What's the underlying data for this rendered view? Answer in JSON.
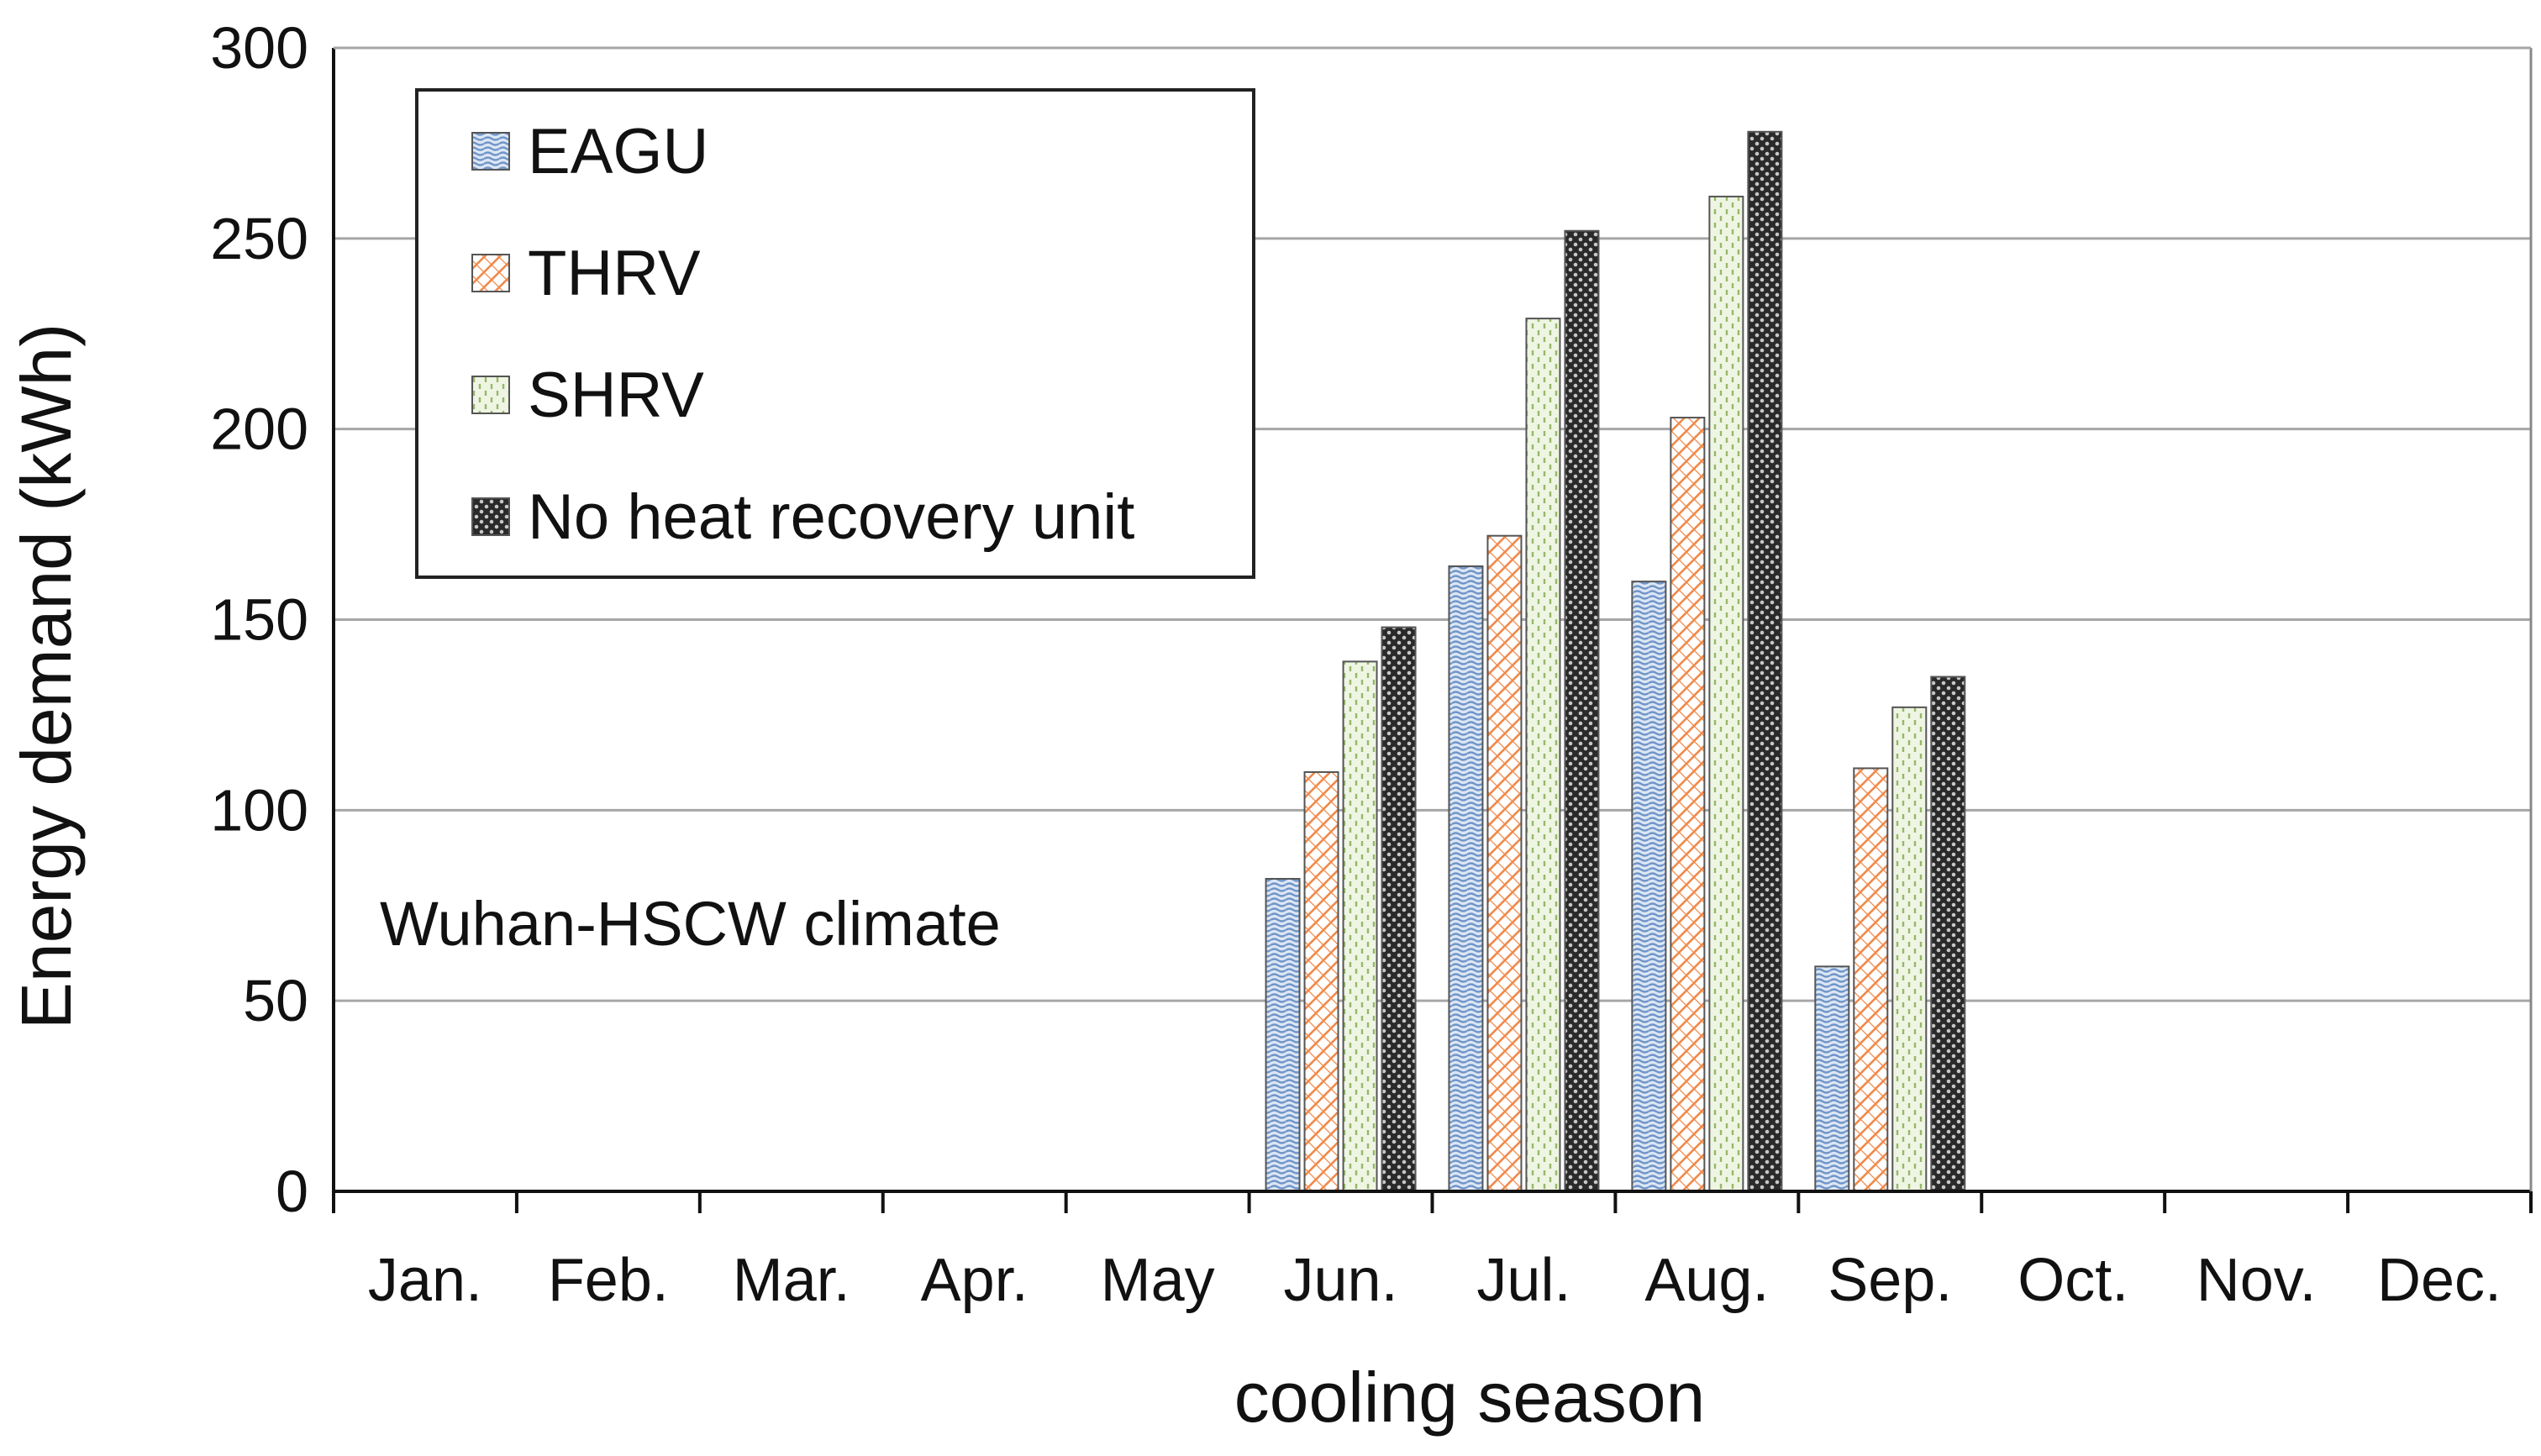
{
  "chart_data": {
    "type": "bar",
    "title": "",
    "annotation": "Wuhan-HSCW climate",
    "xlabel": "cooling season",
    "ylabel": "Energy demand (kWh)",
    "ylim": [
      0,
      300
    ],
    "yticks": [
      0,
      50,
      100,
      150,
      200,
      250,
      300
    ],
    "grid": true,
    "legend_position": "top-left",
    "categories": [
      "Jan.",
      "Feb.",
      "Mar.",
      "Apr.",
      "May",
      "Jun.",
      "Jul.",
      "Aug.",
      "Sep.",
      "Oct.",
      "Nov.",
      "Dec."
    ],
    "series": [
      {
        "name": "EAGU",
        "color": "#b4c8e6",
        "pattern": "wavy-lines",
        "values": [
          0,
          0,
          0,
          0,
          0,
          82,
          164,
          160,
          59,
          0,
          0,
          0
        ]
      },
      {
        "name": "THRV",
        "color": "#f4b183",
        "pattern": "cross-hatch",
        "values": [
          0,
          0,
          0,
          0,
          0,
          110,
          172,
          203,
          111,
          0,
          0,
          0
        ]
      },
      {
        "name": "SHRV",
        "color": "#c9dca6",
        "pattern": "dashed-lines",
        "values": [
          0,
          0,
          0,
          0,
          0,
          139,
          229,
          261,
          127,
          0,
          0,
          0
        ]
      },
      {
        "name": "No heat recovery unit",
        "color": "#3a3a3a",
        "pattern": "dots",
        "values": [
          0,
          0,
          0,
          0,
          0,
          148,
          252,
          278,
          135,
          0,
          0,
          0
        ]
      }
    ]
  }
}
